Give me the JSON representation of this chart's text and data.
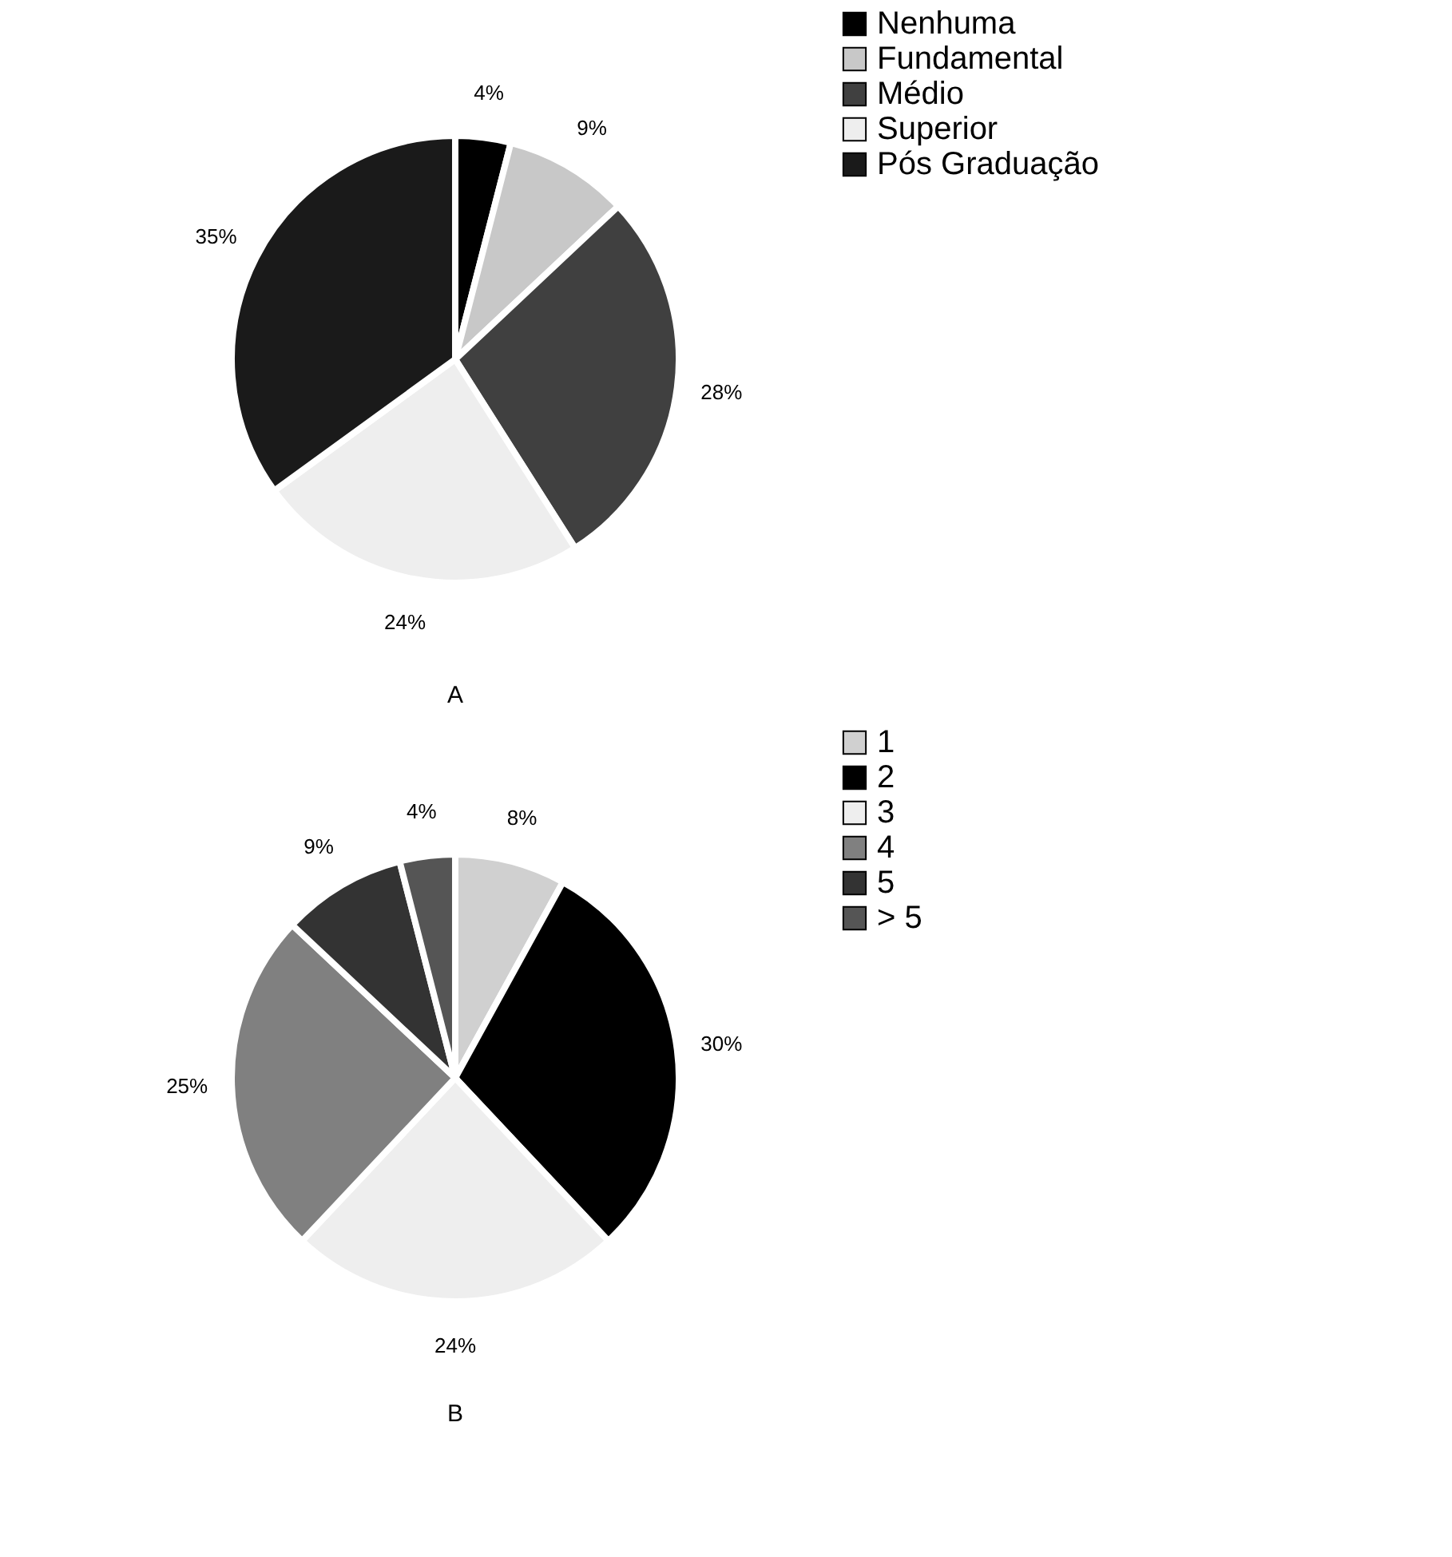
{
  "chart_data": [
    {
      "type": "pie",
      "categories": [
        "Nenhuma",
        "Fundamental",
        "Médio",
        "Superior",
        "Pós Graduação"
      ],
      "values": [
        4,
        9,
        28,
        24,
        35
      ],
      "colors": [
        "#000000",
        "#c8c8c8",
        "#404040",
        "#eeeeee",
        "#1a1a1a"
      ],
      "value_labels": [
        "4%",
        "9%",
        "28%",
        "24%",
        "35%"
      ],
      "legend": "right",
      "annotations": [
        "A"
      ]
    },
    {
      "type": "pie",
      "categories": [
        "1",
        "2",
        "3",
        "4",
        "5",
        "> 5"
      ],
      "values": [
        8,
        30,
        24,
        25,
        9,
        4
      ],
      "colors": [
        "#d0d0d0",
        "#000000",
        "#eeeeee",
        "#808080",
        "#333333",
        "#555555"
      ],
      "value_labels": [
        "8%",
        "30%",
        "24%",
        "25%",
        "9%",
        "4%"
      ],
      "legend": "right",
      "annotations": [
        "B"
      ]
    }
  ]
}
